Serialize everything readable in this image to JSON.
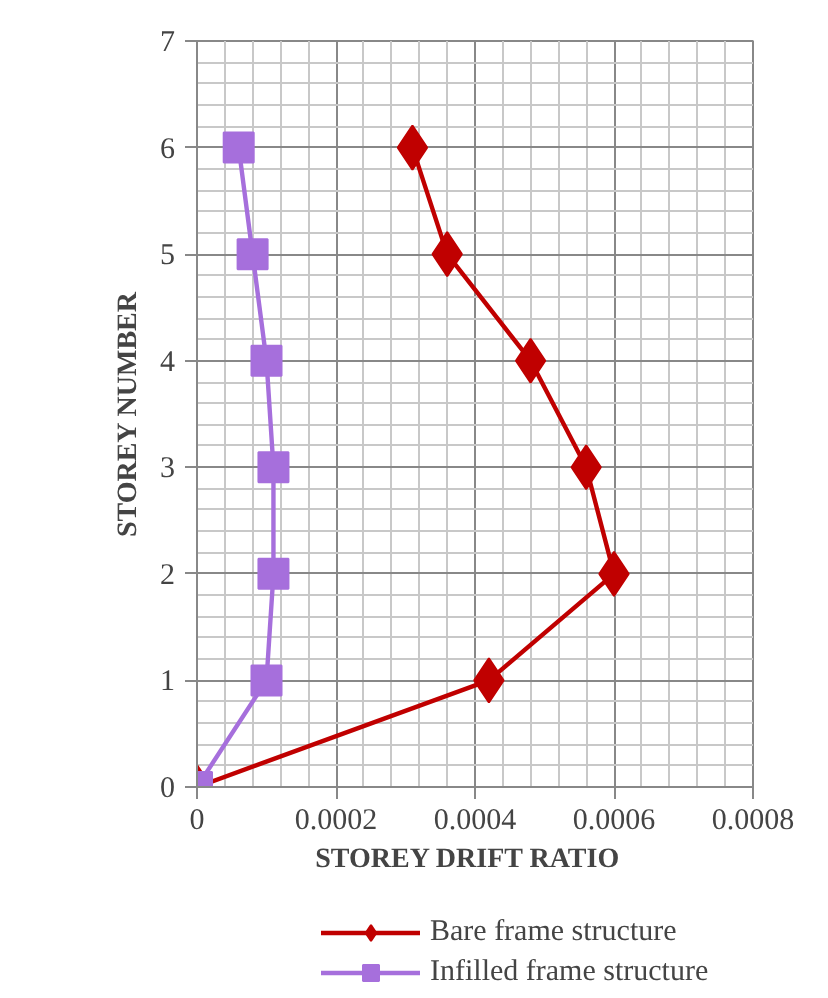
{
  "chart_data": {
    "type": "line",
    "xlabel": "STOREY  DRIFT  RATIO",
    "ylabel": "STOREY NUMBER",
    "xlim": [
      0,
      0.0008
    ],
    "xticks": [
      {
        "value": 0,
        "label": "0"
      },
      {
        "value": 0.0002,
        "label": "0.0002"
      },
      {
        "value": 0.0004,
        "label": "0.0004"
      },
      {
        "value": 0.0006,
        "label": "0.0006"
      },
      {
        "value": 0.0008,
        "label": "0.0008"
      }
    ],
    "ylim": [
      0,
      7
    ],
    "yticks": [
      0,
      1,
      2,
      3,
      4,
      5,
      6,
      7
    ],
    "grid": true,
    "legend": "bottom",
    "line_style": "solid",
    "series": [
      {
        "name": "Bare frame structure",
        "color": "#c00000",
        "marker": "diamond",
        "x": [
          0,
          0.00042,
          0.0006,
          0.00056,
          0.00048,
          0.00036,
          0.00031
        ],
        "values": [
          0,
          1,
          2,
          3,
          4,
          5,
          6
        ]
      },
      {
        "name": "Infilled frame structure",
        "color": "#a66fdc",
        "marker": "square",
        "x": [
          0,
          0.0001,
          0.00011,
          0.00011,
          0.0001,
          8e-05,
          6e-05
        ],
        "values": [
          0,
          1,
          2,
          3,
          4,
          5,
          6
        ]
      }
    ]
  }
}
